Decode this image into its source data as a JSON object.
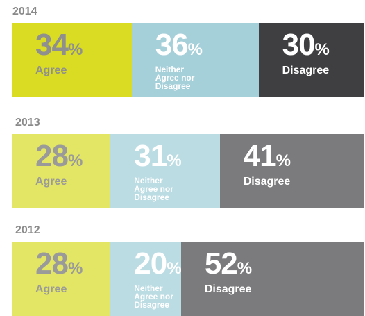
{
  "chart_data": {
    "type": "bar",
    "orientation": "horizontal",
    "stacked": true,
    "categories": [
      "2014",
      "2013",
      "2012"
    ],
    "series": [
      {
        "name": "Agree",
        "colors": [
          "#d9dc22",
          "#e3e664",
          "#e3e664"
        ],
        "values": [
          34,
          28,
          28
        ],
        "value_labels": [
          "34%",
          "28%",
          "28%"
        ]
      },
      {
        "name": "Neither Agree nor Disagree",
        "colors": [
          "#a5cfd9",
          "#bcdce3",
          "#bcdce3"
        ],
        "values": [
          36,
          31,
          20
        ],
        "value_labels": [
          "36%",
          "31%",
          "20%"
        ]
      },
      {
        "name": "Disagree",
        "colors": [
          "#3f3f41",
          "#7b7b7d",
          "#7b7b7d"
        ],
        "values": [
          30,
          41,
          52
        ],
        "value_labels": [
          "30%",
          "41%",
          "52%"
        ]
      }
    ],
    "xlim": [
      0,
      100
    ]
  }
}
